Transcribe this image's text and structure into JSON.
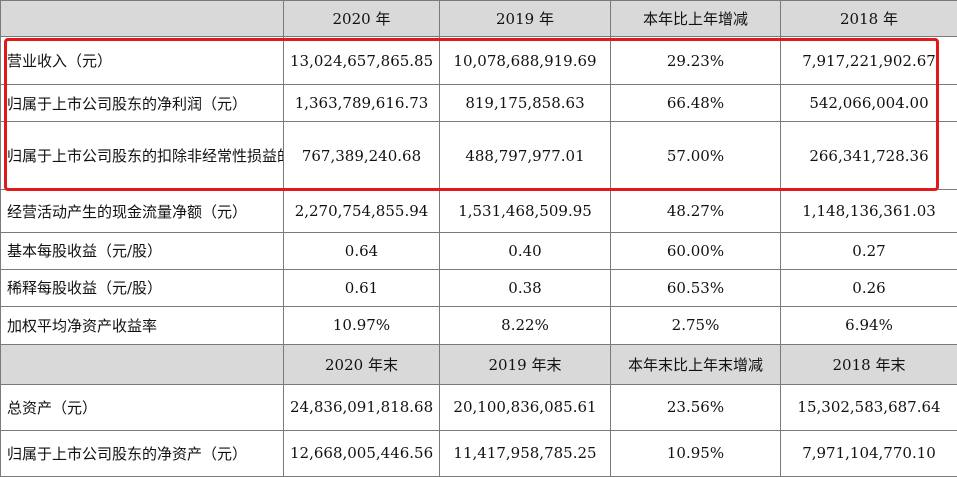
{
  "header1": [
    "",
    "2020 年",
    "2019 年",
    "本年比上年增减",
    "2018 年"
  ],
  "header2": [
    "",
    "2020 年末",
    "2019 年末",
    "本年末比上年末增减",
    "2018 年末"
  ],
  "rows": [
    {
      "label": "营业收入（元）",
      "v2020": "13,024,657,865.85",
      "v2019": "10,078,688,919.69",
      "change": "29.23%",
      "v2018": "7,917,221,902.67"
    },
    {
      "label": "归属于上市公司股东的净利润（元）",
      "v2020": "1,363,789,616.73",
      "v2019": "819,175,858.63",
      "change": "66.48%",
      "v2018": "542,066,004.00"
    },
    {
      "label": "归属于上市公司股东的扣除非经常性损益的净利润（元）",
      "v2020": "767,389,240.68",
      "v2019": "488,797,977.01",
      "change": "57.00%",
      "v2018": "266,341,728.36"
    },
    {
      "label": "经营活动产生的现金流量净额（元）",
      "v2020": "2,270,754,855.94",
      "v2019": "1,531,468,509.95",
      "change": "48.27%",
      "v2018": "1,148,136,361.03"
    },
    {
      "label": "基本每股收益（元/股）",
      "v2020": "0.64",
      "v2019": "0.40",
      "change": "60.00%",
      "v2018": "0.27"
    },
    {
      "label": "稀释每股收益（元/股）",
      "v2020": "0.61",
      "v2019": "0.38",
      "change": "60.53%",
      "v2018": "0.26"
    },
    {
      "label": "加权平均净资产收益率",
      "v2020": "10.97%",
      "v2019": "8.22%",
      "change": "2.75%",
      "v2018": "6.94%"
    }
  ],
  "rows2": [
    {
      "label": "总资产（元）",
      "v2020": "24,836,091,818.68",
      "v2019": "20,100,836,085.61",
      "change": "23.56%",
      "v2018": "15,302,583,687.64"
    },
    {
      "label": "归属于上市公司股东的净资产（元）",
      "v2020": "12,668,005,446.56",
      "v2019": "11,417,958,785.25",
      "change": "10.95%",
      "v2018": "7,971,104,770.10"
    }
  ],
  "colors": {
    "header_bg": "#d9d9d9",
    "highlight": "#e01a1a",
    "border": "#7a7a7a"
  }
}
